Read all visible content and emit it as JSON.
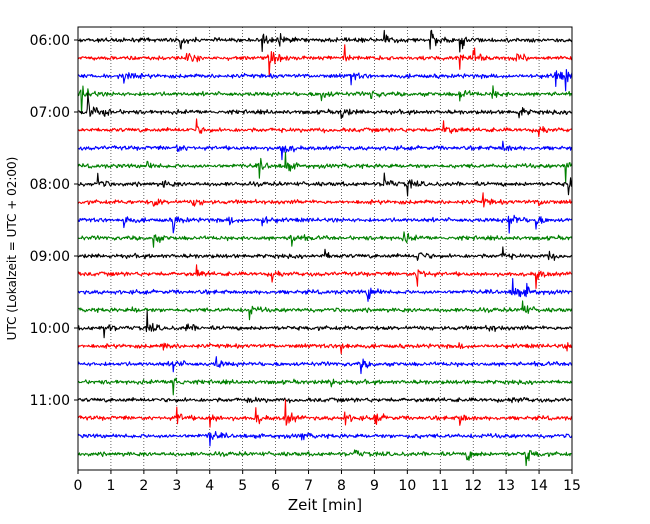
{
  "chart_data": {
    "type": "line",
    "title": "",
    "xlabel": "Zeit  [min]",
    "ylabel": "UTC (Lokalzeit = UTC + 02:00)",
    "xlim": [
      0,
      15
    ],
    "x_ticks": [
      "0",
      "1",
      "2",
      "3",
      "4",
      "5",
      "6",
      "7",
      "8",
      "9",
      "10",
      "11",
      "12",
      "13",
      "14",
      "15"
    ],
    "y_ticks": [
      {
        "label": "06:00",
        "row": 0
      },
      {
        "label": "07:00",
        "row": 4
      },
      {
        "label": "08:00",
        "row": 8
      },
      {
        "label": "09:00",
        "row": 12
      },
      {
        "label": "10:00",
        "row": 16
      },
      {
        "label": "11:00",
        "row": 20
      }
    ],
    "grid": {
      "vertical_dotted": true
    },
    "color_cycle": [
      "#000000",
      "#ff0000",
      "#0000ff",
      "#008000"
    ],
    "traces": [
      {
        "start": "06:00",
        "events": [
          [
            3.1,
            0.7
          ],
          [
            5.6,
            0.6
          ],
          [
            6.1,
            0.4
          ],
          [
            9.3,
            0.4
          ],
          [
            10.7,
            0.9
          ],
          [
            11.6,
            0.8
          ]
        ]
      },
      {
        "start": "06:15",
        "events": [
          [
            3.3,
            0.6
          ],
          [
            5.8,
            0.9
          ],
          [
            8.1,
            0.7
          ],
          [
            11.6,
            0.7
          ],
          [
            12.0,
            0.8
          ],
          [
            13.3,
            0.4
          ]
        ]
      },
      {
        "start": "06:30",
        "events": [
          [
            1.4,
            0.4
          ],
          [
            8.3,
            0.4
          ],
          [
            14.5,
            0.7
          ],
          [
            14.8,
            0.5
          ]
        ]
      },
      {
        "start": "06:45",
        "events": [
          [
            0.1,
            1.0
          ],
          [
            7.4,
            0.5
          ],
          [
            8.9,
            0.4
          ],
          [
            11.6,
            0.6
          ],
          [
            12.6,
            0.4
          ]
        ]
      },
      {
        "start": "07:00",
        "events": [
          [
            0.3,
            0.9
          ],
          [
            0.8,
            0.5
          ],
          [
            8.0,
            0.6
          ],
          [
            13.4,
            0.5
          ]
        ]
      },
      {
        "start": "07:15",
        "events": [
          [
            3.6,
            0.4
          ],
          [
            11.1,
            0.6
          ],
          [
            14.0,
            0.4
          ]
        ]
      },
      {
        "start": "07:30",
        "events": [
          [
            3.0,
            0.4
          ],
          [
            6.2,
            0.9
          ],
          [
            12.9,
            0.4
          ]
        ]
      },
      {
        "start": "07:45",
        "events": [
          [
            2.1,
            0.3
          ],
          [
            5.5,
            0.5
          ],
          [
            6.3,
            0.6
          ],
          [
            14.8,
            0.7
          ]
        ]
      },
      {
        "start": "08:00",
        "events": [
          [
            0.6,
            0.4
          ],
          [
            2.6,
            0.3
          ],
          [
            9.3,
            0.6
          ],
          [
            10.0,
            0.5
          ],
          [
            14.9,
            0.9
          ]
        ]
      },
      {
        "start": "08:15",
        "events": [
          [
            2.3,
            0.4
          ],
          [
            3.5,
            0.4
          ],
          [
            12.3,
            0.4
          ],
          [
            14.0,
            0.4
          ]
        ]
      },
      {
        "start": "08:30",
        "events": [
          [
            1.4,
            0.5
          ],
          [
            2.9,
            0.6
          ],
          [
            4.6,
            0.3
          ],
          [
            5.6,
            0.5
          ],
          [
            13.1,
            0.9
          ],
          [
            13.9,
            0.5
          ]
        ]
      },
      {
        "start": "08:45",
        "events": [
          [
            2.3,
            0.5
          ],
          [
            6.5,
            0.6
          ],
          [
            9.9,
            0.4
          ]
        ]
      },
      {
        "start": "09:00",
        "events": [
          [
            7.5,
            0.3
          ],
          [
            10.3,
            0.6
          ],
          [
            12.9,
            0.3
          ],
          [
            14.3,
            0.3
          ]
        ]
      },
      {
        "start": "09:15",
        "events": [
          [
            3.6,
            0.3
          ],
          [
            5.9,
            0.4
          ],
          [
            10.3,
            0.9
          ],
          [
            13.9,
            0.6
          ]
        ]
      },
      {
        "start": "09:30",
        "events": [
          [
            8.8,
            0.8
          ],
          [
            13.2,
            0.8
          ],
          [
            13.6,
            0.6
          ]
        ]
      },
      {
        "start": "09:45",
        "events": [
          [
            1.6,
            0.3
          ],
          [
            5.2,
            0.4
          ],
          [
            13.5,
            0.6
          ]
        ]
      },
      {
        "start": "10:00",
        "events": [
          [
            0.8,
            0.5
          ],
          [
            2.1,
            0.6
          ],
          [
            3.3,
            0.4
          ],
          [
            12.5,
            0.3
          ]
        ]
      },
      {
        "start": "10:15",
        "events": [
          [
            2.6,
            0.3
          ],
          [
            8.0,
            0.5
          ],
          [
            11.5,
            0.3
          ],
          [
            14.8,
            0.4
          ]
        ]
      },
      {
        "start": "10:30",
        "events": [
          [
            2.9,
            0.5
          ],
          [
            4.2,
            0.4
          ],
          [
            8.6,
            0.4
          ]
        ]
      },
      {
        "start": "10:45",
        "events": [
          [
            2.9,
            0.8
          ],
          [
            7.7,
            0.3
          ]
        ]
      },
      {
        "start": "11:00",
        "events": [
          [
            5.2,
            0.3
          ],
          [
            13.2,
            0.4
          ]
        ]
      },
      {
        "start": "11:15",
        "events": [
          [
            3.0,
            0.6
          ],
          [
            4.0,
            0.4
          ],
          [
            5.4,
            0.5
          ],
          [
            6.3,
            0.9
          ],
          [
            8.1,
            0.5
          ],
          [
            9.0,
            0.6
          ],
          [
            11.6,
            0.5
          ]
        ]
      },
      {
        "start": "11:30",
        "events": [
          [
            4.0,
            0.6
          ],
          [
            6.8,
            0.3
          ],
          [
            10.0,
            0.3
          ]
        ]
      },
      {
        "start": "11:45",
        "events": [
          [
            8.4,
            0.3
          ],
          [
            11.8,
            0.6
          ],
          [
            13.6,
            0.7
          ]
        ]
      }
    ]
  }
}
